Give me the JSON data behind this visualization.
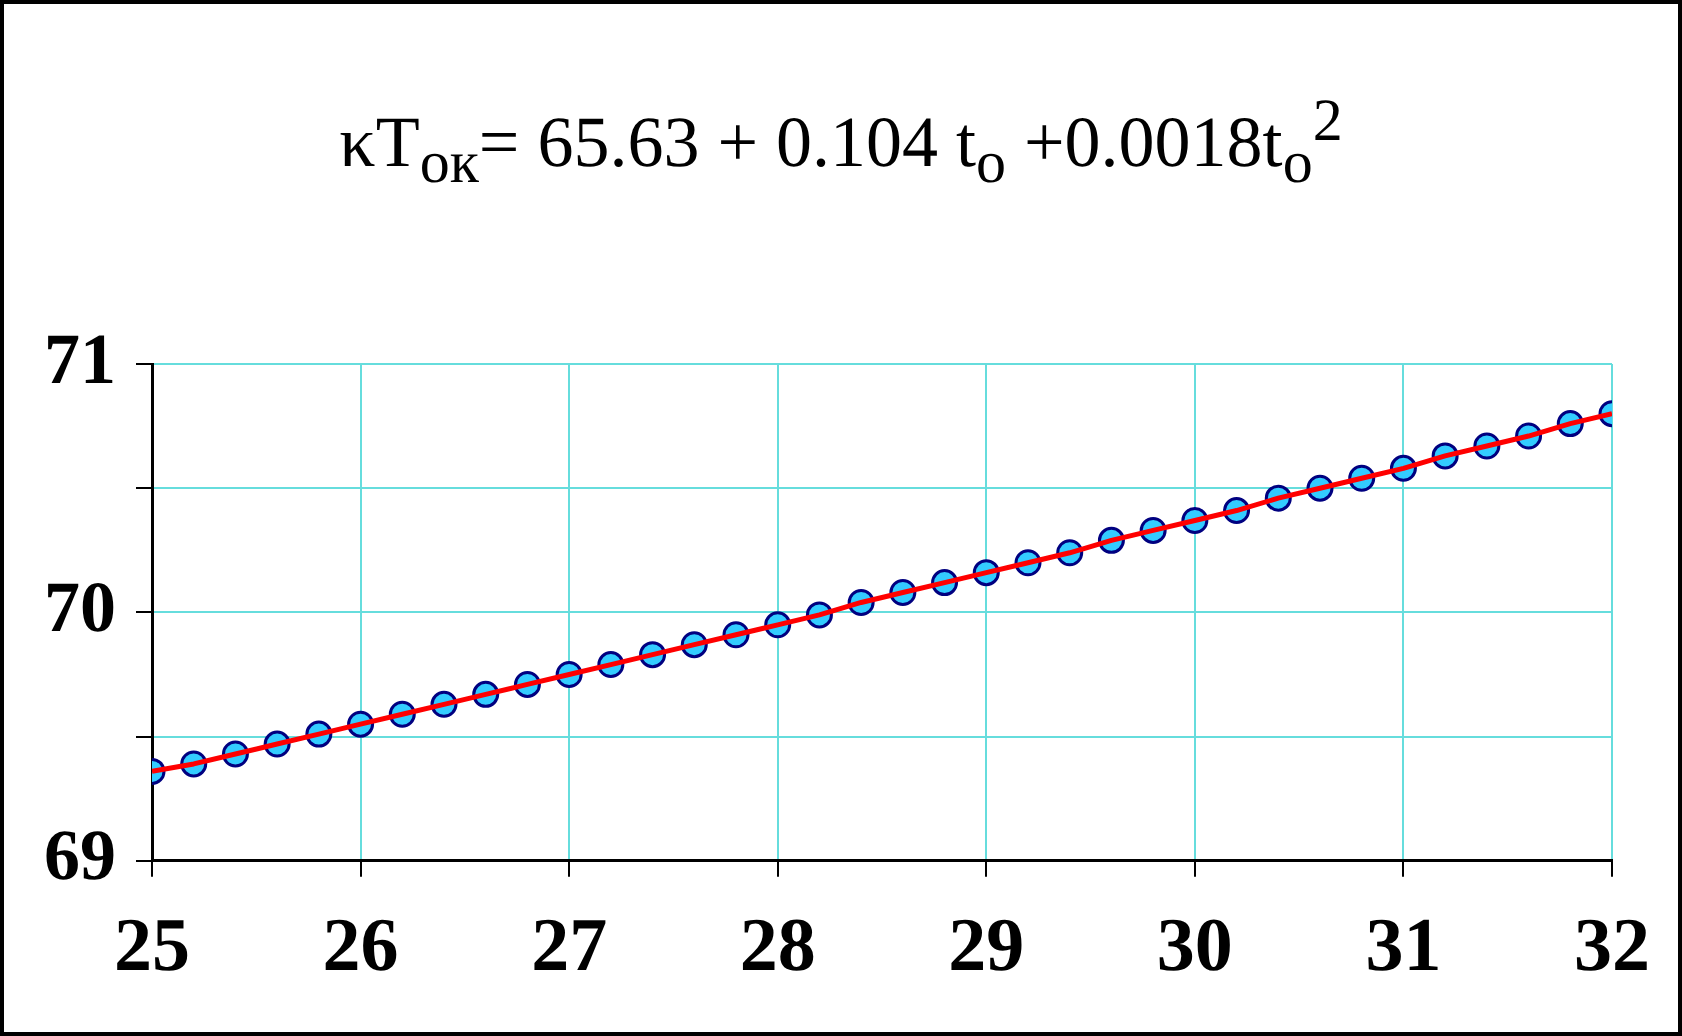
{
  "chart_data": {
    "type": "scatter",
    "title": "κT$_{ок}$= 65.63 + 0.104 t$_{o}$ +0.0018t$_{o}$$^{2}$",
    "x": [
      25,
      25.2,
      25.4,
      25.6,
      25.8,
      26,
      26.2,
      26.4,
      26.6,
      26.8,
      27,
      27.2,
      27.4,
      27.6,
      27.8,
      28,
      28.2,
      28.4,
      28.6,
      28.8,
      29,
      29.2,
      29.4,
      29.6,
      29.8,
      30,
      30.2,
      30.4,
      30.6,
      30.8,
      31,
      31.2,
      31.4,
      31.6,
      31.8,
      32
    ],
    "series": [
      {
        "marker": "circle",
        "color": "#33ccff",
        "values": [
          69.36,
          69.39,
          69.43,
          69.47,
          69.51,
          69.55,
          69.59,
          69.63,
          69.67,
          69.71,
          69.75,
          69.79,
          69.83,
          69.87,
          69.91,
          69.95,
          69.99,
          70.04,
          70.08,
          70.12,
          70.16,
          70.2,
          70.24,
          70.29,
          70.33,
          70.37,
          70.41,
          70.46,
          70.5,
          70.54,
          70.58,
          70.63,
          70.67,
          70.71,
          70.76,
          70.8
        ]
      },
      {
        "type": "line",
        "marker": "none",
        "line_style": "solid",
        "color": "#ff0000",
        "values": [
          69.36,
          69.39,
          69.43,
          69.47,
          69.51,
          69.55,
          69.59,
          69.63,
          69.67,
          69.71,
          69.75,
          69.79,
          69.83,
          69.87,
          69.91,
          69.95,
          69.99,
          70.04,
          70.08,
          70.12,
          70.16,
          70.2,
          70.24,
          70.29,
          70.33,
          70.37,
          70.41,
          70.46,
          70.5,
          70.54,
          70.58,
          70.63,
          70.67,
          70.71,
          70.76,
          70.8
        ]
      }
    ],
    "xlim": [
      25,
      32
    ],
    "xticks": [
      25,
      26,
      27,
      28,
      29,
      30,
      31,
      32
    ],
    "ylim": [
      69,
      71
    ],
    "yticks": [
      69,
      {
        "value": 69.5,
        "label": null
      },
      70,
      {
        "value": 70.5,
        "label": null
      },
      71
    ],
    "grid": true,
    "legend": false
  }
}
